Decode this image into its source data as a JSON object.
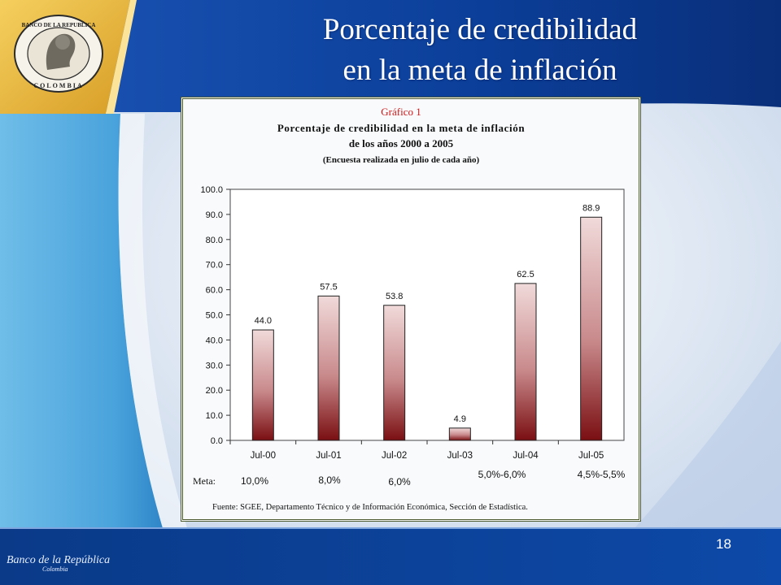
{
  "slide": {
    "title_line1": "Porcentaje de credibilidad",
    "title_line2": "en la meta de inflación",
    "page_number": "18",
    "footer_brand": "Banco de la República",
    "footer_brand_sub": "Colombia",
    "logo_text_top": "BANCO DE LA REPUBLICA",
    "logo_text_bottom": "COLOMBIA"
  },
  "colors": {
    "title_text": "#ffffff",
    "band_blue": "#0a3d91",
    "gold": "#e4b13c",
    "bar_top": "#f1dada",
    "bar_bottom": "#7a0f12",
    "caption_red": "#d01818"
  },
  "chart_data": {
    "type": "bar",
    "caption": "Gráfico 1",
    "title_line1": "Porcentaje de credibilidad en la meta de inflación",
    "title_line2": "de los años 2000 a 2005",
    "subtitle": "(Encuesta realizada en julio de cada año)",
    "categories": [
      "Jul-00",
      "Jul-01",
      "Jul-02",
      "Jul-03",
      "Jul-04",
      "Jul-05"
    ],
    "values": [
      44.0,
      57.5,
      53.8,
      4.9,
      62.5,
      88.9
    ],
    "value_labels": [
      "44.0",
      "57.5",
      "53.8",
      "4.9",
      "62.5",
      "88.9"
    ],
    "ylim": [
      0,
      100
    ],
    "yticks": [
      "0.0",
      "10.0",
      "20.0",
      "30.0",
      "40.0",
      "50.0",
      "60.0",
      "70.0",
      "80.0",
      "90.0",
      "100.0"
    ],
    "grid": false,
    "meta_label": "Meta:",
    "meta_values": [
      "10,0%",
      "8,0%",
      "6,0%",
      "5,0%-6,0%",
      "4,5%-5,5%"
    ],
    "source": "Fuente: SGEE, Departamento Técnico y de Información Económica, Sección de Estadística."
  }
}
